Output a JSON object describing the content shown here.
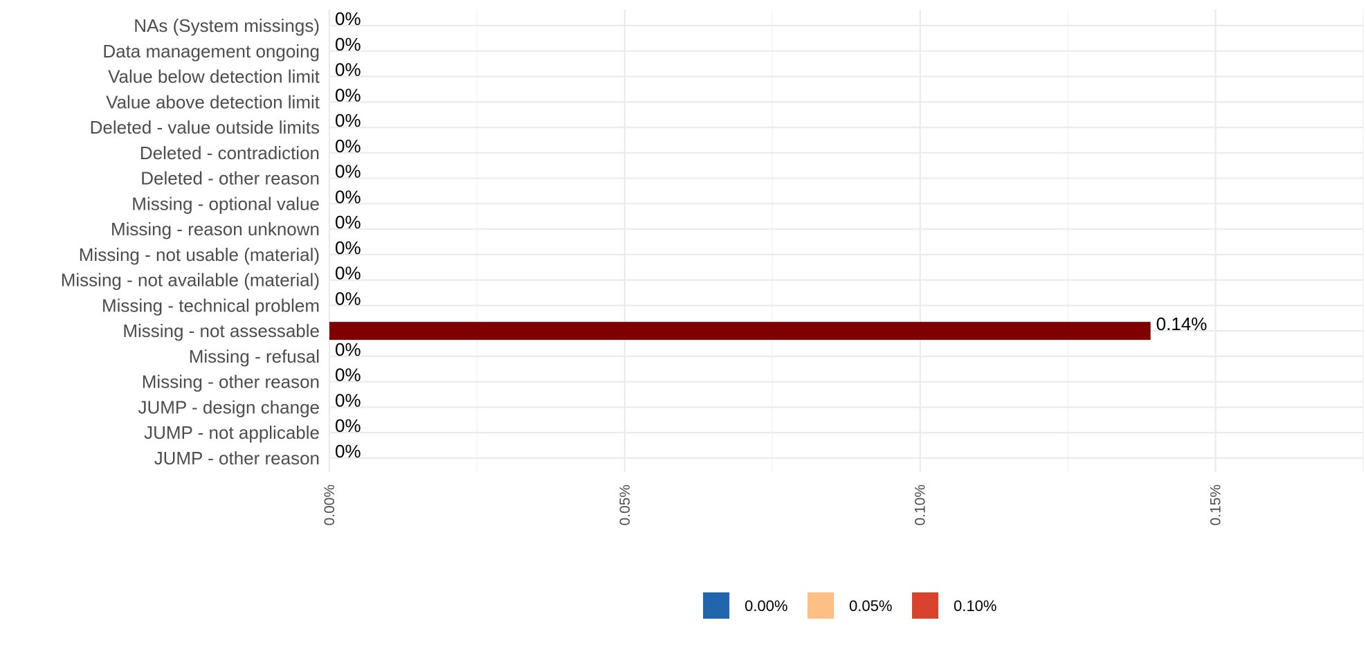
{
  "chart_data": {
    "type": "bar",
    "orientation": "horizontal",
    "categories": [
      "NAs (System missings)",
      "Data management ongoing",
      "Value below detection limit",
      "Value above detection limit",
      "Deleted - value outside limits",
      "Deleted - contradiction",
      "Deleted - other reason",
      "Missing - optional value",
      "Missing - reason unknown",
      "Missing - not usable (material)",
      "Missing - not available (material)",
      "Missing - technical problem",
      "Missing - not assessable",
      "Missing - refusal",
      "Missing - other reason",
      "JUMP - design change",
      "JUMP - not applicable",
      "JUMP - other reason"
    ],
    "values": [
      0,
      0,
      0,
      0,
      0,
      0,
      0,
      0,
      0,
      0,
      0,
      0,
      0.139,
      0,
      0,
      0,
      0,
      0
    ],
    "data_labels": [
      "0%",
      "0%",
      "0%",
      "0%",
      "0%",
      "0%",
      "0%",
      "0%",
      "0%",
      "0%",
      "0%",
      "0%",
      "0.14%",
      "0%",
      "0%",
      "0%",
      "0%",
      "0%"
    ],
    "unit": "%",
    "xlim": [
      0,
      0.175
    ],
    "x_ticks": [
      0,
      0.05,
      0.1,
      0.15
    ],
    "x_tick_labels": [
      "0.00%",
      "0.05%",
      "0.10%",
      "0.15%"
    ],
    "x_tick_label_rotation": "vertical",
    "title": "",
    "xlabel": "",
    "ylabel": "",
    "grid": true,
    "bar_color": "#800000",
    "legend": {
      "position": "bottom",
      "entries": [
        {
          "label": "0.00%",
          "color": "#2166ac"
        },
        {
          "label": "0.05%",
          "color": "#fdbf85"
        },
        {
          "label": "0.10%",
          "color": "#d7432e"
        }
      ]
    },
    "colors": {
      "grid_major": "#ebebeb",
      "grid_minor": "#f3f3f3",
      "label_text": "#4d4d4d",
      "value_text": "#000000"
    }
  }
}
